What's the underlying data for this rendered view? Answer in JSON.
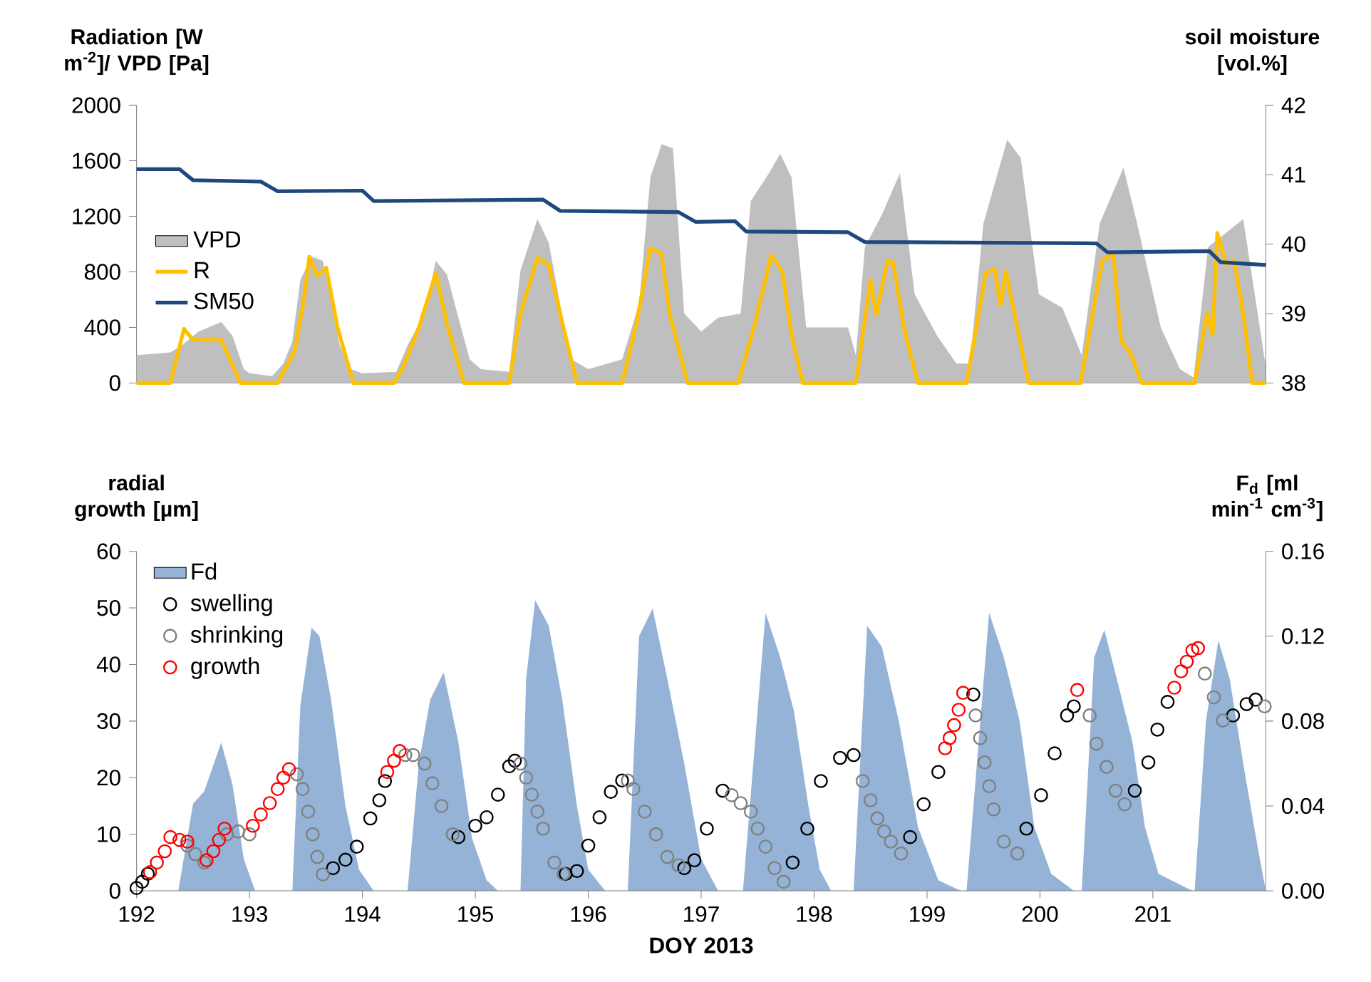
{
  "chart_data": [
    {
      "type": "line",
      "ylabel": "Radiation [W m$^{-2}$]/ VPD [Pa]",
      "y2label": "soil moisture [vol.%]",
      "xlim": [
        192,
        202
      ],
      "ylim": [
        0,
        2000
      ],
      "yticks": [
        0,
        400,
        800,
        1200,
        1600,
        2000
      ],
      "y2lim": [
        38,
        42
      ],
      "y2ticks": [
        38,
        39,
        40,
        41,
        42
      ],
      "tick_labels": "y",
      "legend": "left",
      "series": [
        {
          "name": "VPD",
          "type": "area",
          "axis": "y",
          "color": "#bfbfbf",
          "x": [
            192,
            192.3,
            192.4,
            192.55,
            192.75,
            192.85,
            192.95,
            193.0,
            193.2,
            193.3,
            193.38,
            193.45,
            193.55,
            193.65,
            193.72,
            193.8,
            193.9,
            194.0,
            194.3,
            194.4,
            194.55,
            194.65,
            194.75,
            194.85,
            194.95,
            195.05,
            195.3,
            195.4,
            195.55,
            195.65,
            195.75,
            195.85,
            196.0,
            196.3,
            196.45,
            196.55,
            196.65,
            196.75,
            196.85,
            197.0,
            197.15,
            197.35,
            197.44,
            197.6,
            197.7,
            197.8,
            197.93,
            198.3,
            198.37,
            198.45,
            198.6,
            198.76,
            198.89,
            199.09,
            199.26,
            199.38,
            199.5,
            199.71,
            199.83,
            199.99,
            200.2,
            200.37,
            200.53,
            200.74,
            200.86,
            201.07,
            201.24,
            201.36,
            201.49,
            201.8,
            201.99,
            202
          ],
          "values": [
            200,
            220,
            270,
            370,
            440,
            340,
            100,
            70,
            50,
            140,
            300,
            740,
            910,
            880,
            600,
            270,
            100,
            70,
            80,
            270,
            500,
            880,
            780,
            470,
            170,
            100,
            80,
            810,
            1180,
            1010,
            570,
            170,
            100,
            170,
            570,
            1480,
            1720,
            1690,
            500,
            370,
            470,
            500,
            1310,
            1510,
            1650,
            1480,
            400,
            400,
            200,
            980,
            1210,
            1510,
            640,
            340,
            140,
            140,
            1150,
            1750,
            1620,
            640,
            540,
            200,
            1150,
            1550,
            1150,
            400,
            100,
            40,
            980,
            1180,
            170,
            140
          ]
        },
        {
          "name": "R",
          "axis": "y",
          "color": "#ffc000",
          "x": [
            192,
            192.3,
            192.42,
            192.5,
            192.75,
            192.92,
            193.25,
            193.4,
            193.48,
            193.53,
            193.6,
            193.68,
            193.78,
            193.92,
            194.28,
            194.37,
            194.5,
            194.65,
            194.75,
            194.9,
            195.3,
            195.4,
            195.55,
            195.65,
            195.78,
            195.9,
            196.3,
            196.42,
            196.55,
            196.65,
            196.72,
            196.8,
            196.88,
            197.33,
            197.48,
            197.62,
            197.72,
            197.8,
            197.9,
            198.37,
            198.5,
            198.55,
            198.65,
            198.7,
            198.8,
            198.92,
            199.35,
            199.52,
            199.6,
            199.65,
            199.7,
            199.8,
            199.9,
            200.36,
            200.55,
            200.65,
            200.72,
            200.8,
            200.9,
            201.37,
            201.48,
            201.53,
            201.57,
            201.65,
            201.72,
            201.8,
            201.88,
            202
          ],
          "values": [
            0,
            0,
            390,
            310,
            310,
            0,
            0,
            230,
            590,
            910,
            770,
            830,
            400,
            0,
            0,
            130,
            400,
            790,
            420,
            0,
            0,
            500,
            900,
            850,
            400,
            0,
            0,
            400,
            970,
            930,
            500,
            250,
            0,
            0,
            440,
            920,
            800,
            350,
            0,
            0,
            740,
            490,
            880,
            870,
            380,
            0,
            0,
            790,
            820,
            560,
            800,
            400,
            0,
            0,
            880,
            930,
            300,
            220,
            0,
            0,
            500,
            350,
            1080,
            850,
            880,
            500,
            0,
            0
          ]
        },
        {
          "name": "SM50",
          "axis": "y2",
          "color": "#1f497d",
          "x": [
            192,
            192.38,
            192.5,
            193.1,
            193.25,
            194.0,
            194.1,
            195.6,
            195.75,
            196.8,
            196.95,
            197.3,
            197.4,
            198.3,
            198.45,
            200.5,
            200.6,
            201.5,
            201.6,
            202
          ],
          "values": [
            41.08,
            41.08,
            40.92,
            40.9,
            40.76,
            40.77,
            40.62,
            40.64,
            40.48,
            40.46,
            40.32,
            40.33,
            40.18,
            40.17,
            40.03,
            40.01,
            39.88,
            39.9,
            39.74,
            39.7
          ]
        }
      ]
    },
    {
      "type": "scatter",
      "xlabel": "DOY 2013",
      "ylabel": "radial growth [µm]",
      "y2label": "F$_{d}$ [ml min$^{-1}$ cm$^{-3}$]",
      "xlim": [
        192,
        202
      ],
      "xticks": [
        192,
        193,
        194,
        195,
        196,
        197,
        198,
        199,
        200,
        201
      ],
      "ylim": [
        0,
        60
      ],
      "yticks": [
        0,
        10,
        20,
        30,
        40,
        50,
        60
      ],
      "y2lim": [
        0,
        0.16
      ],
      "y2ticks": [
        {
          "value": 0,
          "label": "0.00"
        },
        0.04,
        0.08,
        0.12,
        0.16
      ],
      "legend": "top left",
      "series": [
        {
          "name": "Fd",
          "type": "area",
          "axis": "y2",
          "color": "#95b3d7",
          "x": [
            192,
            192.37,
            192.5,
            192.6,
            192.75,
            192.85,
            192.95,
            193.05,
            193.38,
            193.45,
            193.55,
            193.62,
            193.72,
            193.85,
            193.97,
            194.1,
            194.4,
            194.5,
            194.6,
            194.72,
            194.85,
            194.97,
            195.1,
            195.2,
            195.4,
            195.45,
            195.53,
            195.65,
            195.77,
            195.9,
            196.0,
            196.15,
            196.35,
            196.45,
            196.57,
            196.7,
            196.85,
            197.0,
            197.15,
            197.37,
            197.57,
            197.7,
            197.82,
            197.95,
            198.05,
            198.15,
            198.35,
            198.47,
            198.6,
            198.75,
            198.92,
            199.1,
            199.3,
            199.35,
            199.55,
            199.68,
            199.82,
            199.95,
            200.1,
            200.3,
            200.37,
            200.48,
            200.57,
            200.68,
            200.82,
            200.93,
            201.05,
            201.35,
            201.37,
            201.47,
            201.58,
            201.68,
            201.8,
            201.93,
            202
          ],
          "values": [
            0,
            0,
            0.041,
            0.047,
            0.07,
            0.05,
            0.015,
            0,
            0,
            0.087,
            0.124,
            0.12,
            0.091,
            0.04,
            0.01,
            0,
            0,
            0.06,
            0.09,
            0.103,
            0.07,
            0.025,
            0.005,
            0,
            0,
            0.1,
            0.137,
            0.125,
            0.09,
            0.04,
            0.01,
            0,
            0,
            0.12,
            0.133,
            0.1,
            0.06,
            0.015,
            0,
            0,
            0.131,
            0.11,
            0.085,
            0.04,
            0.01,
            0,
            0,
            0.125,
            0.115,
            0.08,
            0.03,
            0.005,
            0,
            0,
            0.131,
            0.11,
            0.08,
            0.03,
            0.008,
            0,
            0,
            0.11,
            0.123,
            0.1,
            0.07,
            0.03,
            0.008,
            0,
            0,
            0.08,
            0.118,
            0.1,
            0.06,
            0.02,
            0
          ]
        },
        {
          "name": "swelling",
          "marker": "circle",
          "axis": "y",
          "color": "#000000",
          "x": [
            192.0,
            192.05,
            192.1,
            193.74,
            193.85,
            193.95,
            194.07,
            194.15,
            194.2,
            194.85,
            195.0,
            195.1,
            195.2,
            195.3,
            195.35,
            195.8,
            195.9,
            196.0,
            196.1,
            196.2,
            196.3,
            196.85,
            196.94,
            197.05,
            197.19,
            197.81,
            197.94,
            198.06,
            198.23,
            198.35,
            198.85,
            198.97,
            199.1,
            199.41,
            199.88,
            200.01,
            200.13,
            200.24,
            200.3,
            200.84,
            200.96,
            201.04,
            201.13,
            201.71,
            201.83,
            201.91
          ],
          "values": [
            0.5,
            1.6,
            3,
            4,
            5.5,
            7.8,
            12.8,
            16,
            19.4,
            9.5,
            11.5,
            13,
            17,
            22,
            23,
            3,
            3.5,
            8,
            13,
            17.5,
            19.5,
            4,
            5.4,
            11,
            17.7,
            5,
            11,
            19.4,
            23.5,
            24,
            9.5,
            15.3,
            21,
            34.7,
            11,
            16.9,
            24.3,
            31,
            32.6,
            17.7,
            22.7,
            28.5,
            33.4,
            31,
            33,
            33.8
          ]
        },
        {
          "name": "shrinking",
          "marker": "circle",
          "axis": "y",
          "color": "#808080",
          "x": [
            192.45,
            192.52,
            192.6,
            192.8,
            192.9,
            193.0,
            193.42,
            193.47,
            193.52,
            193.56,
            193.6,
            193.65,
            194.38,
            194.45,
            194.55,
            194.62,
            194.7,
            194.8,
            195.4,
            195.45,
            195.5,
            195.55,
            195.6,
            195.7,
            195.78,
            196.35,
            196.4,
            196.5,
            196.6,
            196.7,
            196.8,
            197.27,
            197.35,
            197.44,
            197.5,
            197.57,
            197.65,
            197.73,
            198.43,
            198.5,
            198.56,
            198.62,
            198.68,
            198.77,
            199.43,
            199.47,
            199.51,
            199.55,
            199.59,
            199.68,
            199.8,
            200.44,
            200.5,
            200.59,
            200.67,
            200.75,
            201.46,
            201.54,
            201.62,
            201.99
          ],
          "values": [
            8,
            6.5,
            5,
            10,
            10.5,
            10,
            20.6,
            18,
            14,
            10,
            6,
            2.9,
            24,
            24,
            22.5,
            19,
            15,
            10,
            22.5,
            20,
            17,
            14,
            11,
            5,
            3,
            19.5,
            18,
            14,
            10,
            6,
            4.5,
            16.9,
            15.5,
            14,
            11,
            7.8,
            4,
            1.6,
            19.4,
            16,
            12.8,
            10.5,
            8.7,
            6.6,
            31,
            27,
            22.7,
            18.5,
            14.4,
            8.7,
            6.6,
            31,
            26,
            21.9,
            17.7,
            15.3,
            38.4,
            34.2,
            30.1,
            32.6
          ]
        },
        {
          "name": "growth",
          "marker": "circle",
          "axis": "y",
          "color": "#ff0000",
          "x": [
            192.12,
            192.18,
            192.25,
            192.3,
            192.38,
            192.45,
            192.62,
            192.68,
            192.73,
            192.78,
            193.03,
            193.1,
            193.18,
            193.25,
            193.3,
            193.35,
            194.22,
            194.28,
            194.33,
            199.16,
            199.2,
            199.24,
            199.28,
            199.32,
            200.33,
            201.19,
            201.25,
            201.3,
            201.35,
            201.4
          ],
          "values": [
            3.3,
            5,
            7,
            9.5,
            9,
            8.7,
            5.4,
            7,
            9,
            11,
            11.5,
            13.5,
            15.5,
            18,
            20,
            21.5,
            21,
            23,
            24.7,
            25.2,
            27,
            29.3,
            32,
            35,
            35.5,
            35.9,
            38.8,
            40.5,
            42.5,
            42.9
          ]
        }
      ]
    }
  ]
}
